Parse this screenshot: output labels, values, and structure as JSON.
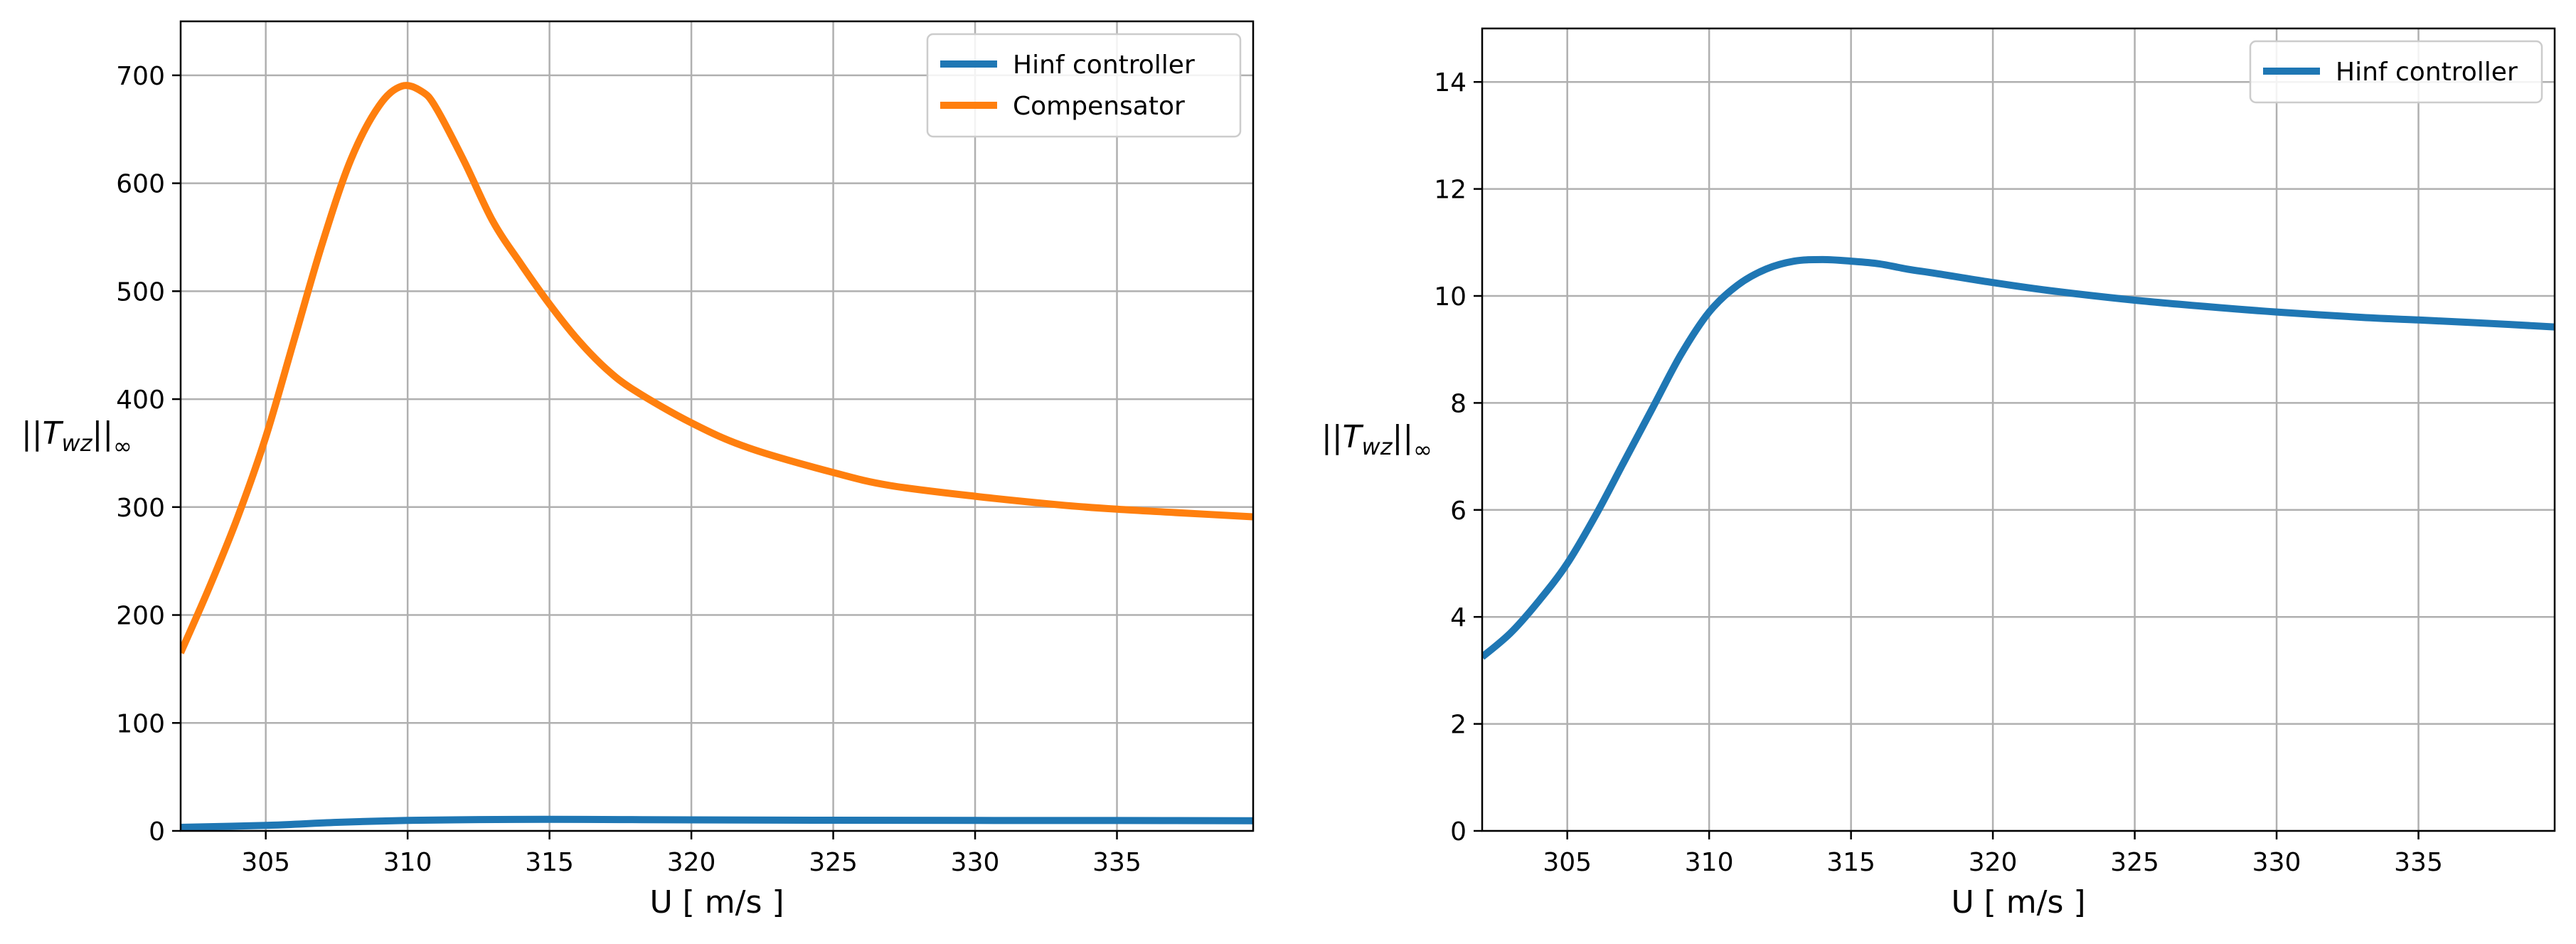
{
  "colors": {
    "hinf": "#1f77b4",
    "compensator": "#ff7f0e",
    "grid": "#b0b0b0"
  },
  "chart_data": [
    {
      "type": "line",
      "xlabel": "U [ m/s ]",
      "ylabel_main": "||T",
      "ylabel_sub": "wz",
      "ylabel_tail": "||",
      "ylabel_inf": "∞",
      "xlim": [
        302,
        339.8
      ],
      "ylim": [
        0,
        750
      ],
      "xticks": [
        305,
        310,
        315,
        320,
        325,
        330,
        335
      ],
      "yticks": [
        0,
        100,
        200,
        300,
        400,
        500,
        600,
        700
      ],
      "grid": true,
      "legend_placement": "top-right",
      "series": [
        {
          "name": "Hinf controller",
          "color": "#1f77b4",
          "x": [
            302,
            305,
            307.5,
            310,
            312.5,
            315,
            317.5,
            320,
            325,
            330,
            335,
            339.8
          ],
          "y": [
            3.3,
            5.1,
            7.9,
            9.7,
            10.5,
            10.7,
            10.5,
            10.2,
            9.9,
            9.7,
            9.6,
            9.4
          ]
        },
        {
          "name": "Compensator",
          "color": "#ff7f0e",
          "x": [
            302,
            303,
            304,
            305,
            306,
            307,
            308,
            309,
            309.8,
            310.5,
            311,
            312,
            313,
            314,
            315,
            316,
            317,
            318,
            320,
            322,
            325,
            327,
            330,
            333,
            335,
            337,
            339.8
          ],
          "y": [
            165,
            225,
            290,
            365,
            455,
            545,
            622,
            672,
            690,
            685,
            670,
            620,
            565,
            525,
            488,
            455,
            428,
            408,
            378,
            355,
            332,
            320,
            310,
            302,
            298,
            295,
            291
          ]
        }
      ]
    },
    {
      "type": "line",
      "xlabel": "U [ m/s ]",
      "ylabel_main": "||T",
      "ylabel_sub": "wz",
      "ylabel_tail": "||",
      "ylabel_inf": "∞",
      "xlim": [
        302,
        339.8
      ],
      "ylim": [
        0,
        15
      ],
      "xticks": [
        305,
        310,
        315,
        320,
        325,
        330,
        335
      ],
      "yticks": [
        0,
        2,
        4,
        6,
        8,
        10,
        12,
        14
      ],
      "grid": true,
      "legend_placement": "top-right",
      "series": [
        {
          "name": "Hinf controller",
          "color": "#1f77b4",
          "x": [
            302,
            303,
            304,
            305,
            306,
            307,
            308,
            309,
            310,
            311,
            312,
            313,
            314,
            315,
            316,
            317,
            318,
            320,
            322,
            325,
            328,
            330,
            333,
            335,
            337,
            339.8
          ],
          "y": [
            3.25,
            3.7,
            4.3,
            5.0,
            5.9,
            6.9,
            7.9,
            8.9,
            9.7,
            10.2,
            10.5,
            10.65,
            10.68,
            10.65,
            10.6,
            10.5,
            10.42,
            10.25,
            10.1,
            9.92,
            9.78,
            9.7,
            9.6,
            9.55,
            9.5,
            9.42
          ]
        }
      ]
    }
  ]
}
